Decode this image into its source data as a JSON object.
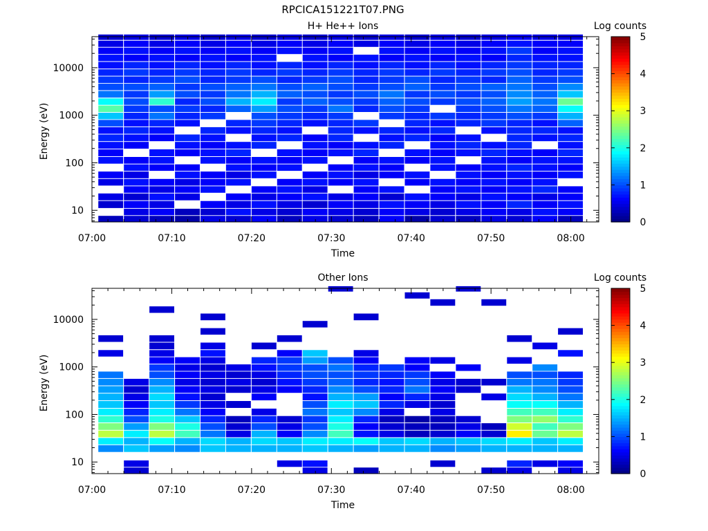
{
  "figure": {
    "title": "RPCICA151221T07.PNG"
  },
  "chart_data": [
    {
      "type": "heatmap",
      "title": "H+ He++ Ions",
      "xlabel": "Time",
      "ylabel": "Energy (eV)",
      "x_ticks": [
        "07:00",
        "07:10",
        "07:20",
        "07:30",
        "07:40",
        "07:50",
        "08:00"
      ],
      "x_range_minutes": [
        0,
        63.5
      ],
      "y_scale": "log",
      "y_ticks": [
        "10",
        "100",
        "1000",
        "10000"
      ],
      "y_range": [
        5.7,
        45000
      ],
      "colorbar": {
        "label": "Log counts",
        "range": [
          0,
          5
        ],
        "ticks": [
          "0",
          "1",
          "2",
          "3",
          "4",
          "5"
        ],
        "colormap": "jet"
      },
      "time_bins_minutes": [
        2.4,
        5.6,
        8.8,
        12.0,
        15.2,
        18.4,
        21.6,
        24.8,
        28.0,
        31.2,
        34.4,
        37.6,
        40.8,
        44.0,
        47.2,
        50.4,
        53.6,
        56.8,
        60.0
      ],
      "time_bin_width_minutes": 3.2,
      "energy_bins_eV": [
        6.5,
        9,
        13,
        19,
        27,
        38,
        55,
        78,
        110,
        160,
        230,
        330,
        470,
        670,
        950,
        1350,
        1900,
        2700,
        3900,
        5500,
        7800,
        11000,
        16000,
        22000,
        32000,
        43000
      ],
      "values_log_counts": [
        [
          0.3,
          0.4,
          0.3,
          0.2,
          0.5,
          0.4,
          0.6,
          0.3,
          0.5,
          0.4,
          0.3,
          0.6,
          0.2,
          0.4,
          0.3,
          0.5,
          0.4,
          0.6,
          0.3
        ],
        [
          0.0,
          0.5,
          0.6,
          0.3,
          0.4,
          0.7,
          0.5,
          0.4,
          0.6,
          0.5,
          0.4,
          0.6,
          0.5,
          0.4,
          0.5,
          0.6,
          0.5,
          0.7,
          0.6
        ],
        [
          0.4,
          0.6,
          0.5,
          0.0,
          0.6,
          0.5,
          0.7,
          0.5,
          0.4,
          0.6,
          0.5,
          0.7,
          0.6,
          0.5,
          0.7,
          0.6,
          0.8,
          0.6,
          0.7
        ],
        [
          0.5,
          0.4,
          0.7,
          0.5,
          0.0,
          0.6,
          0.5,
          0.6,
          0.7,
          0.5,
          0.6,
          0.4,
          0.7,
          0.6,
          0.5,
          0.7,
          0.6,
          0.5,
          0.6
        ],
        [
          0.0,
          0.6,
          0.5,
          0.6,
          0.7,
          0.0,
          0.6,
          0.7,
          0.5,
          0.0,
          0.6,
          0.7,
          0.0,
          0.6,
          0.7,
          0.6,
          0.7,
          0.8,
          0.6
        ],
        [
          0.5,
          0.7,
          0.6,
          0.5,
          0.6,
          0.7,
          0.0,
          0.6,
          0.7,
          0.6,
          0.7,
          0.0,
          0.6,
          0.7,
          0.6,
          0.7,
          0.6,
          0.7,
          0.0
        ],
        [
          0.6,
          0.5,
          0.0,
          0.7,
          0.6,
          0.5,
          0.7,
          0.0,
          0.6,
          0.7,
          0.5,
          0.6,
          0.7,
          0.0,
          0.7,
          0.6,
          0.7,
          0.6,
          0.7
        ],
        [
          0.0,
          0.7,
          0.6,
          0.6,
          0.0,
          0.7,
          0.6,
          0.7,
          0.0,
          0.6,
          0.7,
          0.6,
          0.0,
          0.7,
          0.6,
          0.7,
          0.8,
          0.7,
          0.6
        ],
        [
          0.7,
          0.6,
          0.7,
          0.0,
          0.7,
          0.6,
          0.7,
          0.6,
          0.7,
          0.0,
          0.6,
          0.7,
          0.6,
          0.7,
          0.0,
          0.7,
          0.6,
          0.7,
          0.7
        ],
        [
          0.6,
          0.0,
          0.7,
          0.6,
          0.7,
          0.8,
          0.0,
          0.7,
          0.6,
          0.7,
          0.8,
          0.0,
          0.7,
          0.6,
          0.7,
          0.8,
          0.7,
          0.6,
          0.8
        ],
        [
          0.7,
          0.6,
          0.0,
          0.7,
          0.6,
          0.7,
          0.8,
          0.0,
          0.7,
          0.6,
          0.7,
          0.8,
          0.0,
          0.7,
          0.8,
          0.7,
          0.8,
          0.0,
          0.7
        ],
        [
          0.8,
          0.7,
          0.6,
          0.8,
          0.7,
          0.0,
          0.7,
          0.8,
          0.6,
          0.8,
          0.0,
          0.7,
          0.8,
          0.6,
          0.7,
          0.0,
          0.8,
          0.7,
          0.8
        ],
        [
          0.7,
          0.8,
          0.7,
          0.0,
          0.8,
          0.7,
          0.8,
          0.7,
          0.0,
          0.8,
          0.7,
          0.8,
          0.7,
          0.8,
          0.0,
          0.7,
          0.8,
          0.8,
          0.7
        ],
        [
          1.0,
          0.7,
          0.8,
          0.7,
          0.0,
          0.8,
          0.9,
          0.8,
          0.7,
          0.8,
          0.9,
          0.0,
          0.8,
          0.7,
          0.8,
          0.9,
          0.8,
          0.7,
          1.1
        ],
        [
          1.6,
          0.8,
          1.2,
          0.8,
          0.9,
          0.0,
          1.0,
          0.9,
          0.8,
          0.9,
          0.0,
          0.9,
          0.8,
          0.9,
          0.8,
          0.9,
          1.0,
          0.9,
          1.5
        ],
        [
          2.3,
          0.9,
          1.0,
          0.9,
          0.8,
          1.1,
          1.4,
          1.0,
          0.9,
          1.2,
          0.8,
          1.0,
          0.9,
          0.0,
          0.9,
          1.0,
          1.2,
          1.1,
          1.9
        ],
        [
          1.9,
          1.0,
          2.1,
          0.8,
          1.0,
          1.5,
          1.8,
          0.9,
          1.1,
          1.0,
          0.9,
          1.1,
          1.0,
          0.9,
          1.0,
          1.1,
          1.4,
          1.2,
          2.4
        ],
        [
          1.2,
          0.9,
          1.4,
          1.0,
          0.9,
          1.2,
          1.5,
          1.1,
          1.0,
          0.9,
          1.0,
          1.2,
          0.9,
          1.0,
          0.9,
          1.0,
          1.3,
          1.1,
          1.6
        ],
        [
          1.0,
          1.0,
          1.1,
          0.9,
          1.0,
          1.1,
          1.2,
          1.0,
          1.1,
          1.0,
          0.9,
          1.0,
          1.1,
          0.9,
          1.0,
          1.1,
          1.2,
          1.0,
          1.3
        ],
        [
          0.9,
          0.8,
          0.9,
          1.0,
          0.8,
          0.9,
          1.0,
          0.8,
          0.9,
          1.0,
          0.8,
          0.9,
          1.0,
          0.8,
          0.9,
          0.8,
          1.1,
          0.9,
          1.0
        ],
        [
          0.8,
          0.9,
          0.8,
          0.9,
          0.8,
          0.9,
          0.8,
          0.9,
          0.8,
          0.9,
          0.8,
          0.9,
          0.8,
          0.9,
          0.8,
          0.9,
          1.0,
          0.8,
          0.9
        ],
        [
          0.7,
          0.8,
          0.7,
          0.8,
          0.7,
          0.8,
          0.7,
          0.8,
          0.7,
          0.8,
          0.7,
          0.8,
          0.7,
          0.8,
          0.7,
          0.8,
          0.9,
          0.8,
          0.8
        ],
        [
          0.7,
          0.6,
          0.7,
          0.6,
          0.7,
          0.6,
          0.7,
          0.0,
          0.7,
          0.6,
          0.7,
          0.6,
          0.7,
          0.6,
          0.7,
          0.6,
          0.8,
          0.7,
          0.7
        ],
        [
          0.6,
          0.7,
          0.6,
          0.7,
          0.6,
          0.7,
          0.6,
          0.7,
          0.6,
          0.7,
          0.0,
          0.7,
          0.6,
          0.7,
          0.6,
          0.7,
          0.9,
          0.6,
          0.7
        ],
        [
          0.5,
          0.6,
          0.5,
          0.6,
          0.5,
          0.6,
          0.5,
          0.6,
          0.5,
          0.6,
          0.5,
          0.6,
          0.5,
          0.6,
          0.5,
          0.6,
          0.7,
          0.6,
          0.6
        ],
        [
          0.4,
          0.5,
          0.4,
          0.5,
          0.4,
          0.5,
          0.4,
          0.5,
          0.4,
          0.5,
          0.4,
          0.5,
          0.4,
          0.5,
          0.4,
          0.5,
          0.6,
          0.5,
          0.5
        ]
      ]
    },
    {
      "type": "heatmap",
      "title": "Other Ions",
      "xlabel": "Time",
      "ylabel": "Energy (eV)",
      "x_ticks": [
        "07:00",
        "07:10",
        "07:20",
        "07:30",
        "07:40",
        "07:50",
        "08:00"
      ],
      "x_range_minutes": [
        0,
        63.5
      ],
      "y_scale": "log",
      "y_ticks": [
        "10",
        "100",
        "1000",
        "10000"
      ],
      "y_range": [
        5.7,
        45000
      ],
      "colorbar": {
        "label": "Log counts",
        "range": [
          0,
          5
        ],
        "ticks": [
          "0",
          "1",
          "2",
          "3",
          "4",
          "5"
        ],
        "colormap": "jet"
      },
      "time_bins_minutes": [
        2.4,
        5.6,
        8.8,
        12.0,
        15.2,
        18.4,
        21.6,
        24.8,
        28.0,
        31.2,
        34.4,
        37.6,
        40.8,
        44.0,
        47.2,
        50.4,
        53.6,
        56.8,
        60.0
      ],
      "time_bin_width_minutes": 3.2,
      "energy_bins_eV": [
        6.5,
        9,
        13,
        19,
        27,
        38,
        55,
        78,
        110,
        160,
        230,
        330,
        470,
        670,
        950,
        1350,
        1900,
        2700,
        3900,
        5500,
        7800,
        11000,
        16000,
        22000,
        32000,
        43000
      ],
      "values_log_counts": [
        [
          0.0,
          0.4,
          0.0,
          0.0,
          0.0,
          0.0,
          0.0,
          0.0,
          0.5,
          0.0,
          0.3,
          0.0,
          0.0,
          0.0,
          0.0,
          0.4,
          0.5,
          0.0,
          0.5
        ],
        [
          0.0,
          0.5,
          0.0,
          0.0,
          0.0,
          0.0,
          0.0,
          0.5,
          0.7,
          0.0,
          0.0,
          0.0,
          0.0,
          0.4,
          0.0,
          0.0,
          0.8,
          0.5,
          0.6
        ],
        [
          0.0,
          0.0,
          0.0,
          0.0,
          0.0,
          0.0,
          0.0,
          0.0,
          0.0,
          0.0,
          0.0,
          0.0,
          0.0,
          0.0,
          0.0,
          0.0,
          0.0,
          0.0,
          0.0
        ],
        [
          1.3,
          1.6,
          1.4,
          1.3,
          1.6,
          1.5,
          1.5,
          1.5,
          1.6,
          1.5,
          1.4,
          1.5,
          1.5,
          1.3,
          1.4,
          1.5,
          1.5,
          1.5,
          1.5
        ],
        [
          1.8,
          1.5,
          1.9,
          1.5,
          1.7,
          1.5,
          1.7,
          1.6,
          1.8,
          1.8,
          1.9,
          1.6,
          1.7,
          1.5,
          1.6,
          1.7,
          1.8,
          1.6,
          1.8
        ],
        [
          2.8,
          1.8,
          2.8,
          2.2,
          1.2,
          0.5,
          1.5,
          0.6,
          1.3,
          2.2,
          0.7,
          0.5,
          0.3,
          0.4,
          0.6,
          0.4,
          3.2,
          2.4,
          2.8
        ],
        [
          2.5,
          1.4,
          2.5,
          2.0,
          1.0,
          0.4,
          1.0,
          0.5,
          1.0,
          2.0,
          0.6,
          0.4,
          0.3,
          0.3,
          0.5,
          0.3,
          2.9,
          2.2,
          2.5
        ],
        [
          2.1,
          1.0,
          2.0,
          1.6,
          0.8,
          0.3,
          0.8,
          0.4,
          0.9,
          1.8,
          0.8,
          0.3,
          0.2,
          0.3,
          0.4,
          0.0,
          2.5,
          2.6,
          2.1
        ],
        [
          1.8,
          0.8,
          1.8,
          1.2,
          0.6,
          0.0,
          0.5,
          0.0,
          1.2,
          1.6,
          1.3,
          0.5,
          0.0,
          0.5,
          0.0,
          0.0,
          2.2,
          2.2,
          1.8
        ],
        [
          1.6,
          0.6,
          1.6,
          0.9,
          0.5,
          0.4,
          0.0,
          0.0,
          1.0,
          1.8,
          1.6,
          0.8,
          0.5,
          0.4,
          0.0,
          0.0,
          1.9,
          1.9,
          1.5
        ],
        [
          1.5,
          0.5,
          1.7,
          0.7,
          0.4,
          0.0,
          0.6,
          0.0,
          0.7,
          1.5,
          1.4,
          0.6,
          0.8,
          0.5,
          0.0,
          0.5,
          1.7,
          1.5,
          1.2
        ],
        [
          1.4,
          0.4,
          1.5,
          0.6,
          0.5,
          0.4,
          0.5,
          0.6,
          0.8,
          1.3,
          1.0,
          0.8,
          1.2,
          0.6,
          0.4,
          0.0,
          1.5,
          1.3,
          1.0
        ],
        [
          1.3,
          0.5,
          1.3,
          0.5,
          0.4,
          0.5,
          0.4,
          0.7,
          0.9,
          1.1,
          0.8,
          0.7,
          1.0,
          0.5,
          0.4,
          0.4,
          1.2,
          1.2,
          0.9
        ],
        [
          1.2,
          0.0,
          1.0,
          0.6,
          0.5,
          0.4,
          0.5,
          0.8,
          1.0,
          1.0,
          0.9,
          0.8,
          0.9,
          0.6,
          0.0,
          0.0,
          1.0,
          1.0,
          0.8
        ],
        [
          0.0,
          0.0,
          0.9,
          0.5,
          0.4,
          0.5,
          0.7,
          0.9,
          1.0,
          1.2,
          0.8,
          0.9,
          0.6,
          0.0,
          0.6,
          0.0,
          0.0,
          1.3,
          0.0
        ],
        [
          0.0,
          0.0,
          0.6,
          0.6,
          0.5,
          0.0,
          0.8,
          0.9,
          1.4,
          1.0,
          0.6,
          0.0,
          0.6,
          0.5,
          0.0,
          0.0,
          0.5,
          0.0,
          0.0
        ],
        [
          0.5,
          0.0,
          0.5,
          0.0,
          0.7,
          0.0,
          0.0,
          0.6,
          1.6,
          0.0,
          0.5,
          0.0,
          0.0,
          0.0,
          0.0,
          0.0,
          0.0,
          0.0,
          0.7
        ],
        [
          0.0,
          0.0,
          0.4,
          0.0,
          0.5,
          0.0,
          0.4,
          0.0,
          0.0,
          0.0,
          0.0,
          0.0,
          0.0,
          0.0,
          0.0,
          0.0,
          0.0,
          0.5,
          0.0
        ],
        [
          0.4,
          0.0,
          0.4,
          0.0,
          0.0,
          0.0,
          0.0,
          0.4,
          0.0,
          0.0,
          0.0,
          0.0,
          0.0,
          0.0,
          0.0,
          0.0,
          0.4,
          0.0,
          0.0
        ],
        [
          0.0,
          0.0,
          0.0,
          0.0,
          0.4,
          0.0,
          0.0,
          0.0,
          0.0,
          0.0,
          0.0,
          0.0,
          0.0,
          0.0,
          0.0,
          0.0,
          0.0,
          0.0,
          0.4
        ],
        [
          0.0,
          0.0,
          0.0,
          0.0,
          0.0,
          0.0,
          0.0,
          0.0,
          0.4,
          0.0,
          0.0,
          0.0,
          0.0,
          0.0,
          0.0,
          0.0,
          0.0,
          0.0,
          0.0
        ],
        [
          0.0,
          0.0,
          0.0,
          0.0,
          0.4,
          0.0,
          0.0,
          0.0,
          0.0,
          0.0,
          0.4,
          0.0,
          0.0,
          0.0,
          0.0,
          0.0,
          0.0,
          0.0,
          0.0
        ],
        [
          0.0,
          0.0,
          0.4,
          0.0,
          0.0,
          0.0,
          0.0,
          0.0,
          0.0,
          0.0,
          0.0,
          0.0,
          0.0,
          0.0,
          0.0,
          0.0,
          0.0,
          0.0,
          0.0
        ],
        [
          0.0,
          0.0,
          0.0,
          0.0,
          0.0,
          0.0,
          0.0,
          0.0,
          0.0,
          0.0,
          0.0,
          0.0,
          0.0,
          0.4,
          0.0,
          0.4,
          0.0,
          0.0,
          0.0
        ],
        [
          0.0,
          0.0,
          0.0,
          0.0,
          0.0,
          0.0,
          0.0,
          0.0,
          0.0,
          0.0,
          0.0,
          0.0,
          0.4,
          0.0,
          0.0,
          0.0,
          0.0,
          0.0,
          0.0
        ],
        [
          0.0,
          0.0,
          0.0,
          0.0,
          0.0,
          0.0,
          0.0,
          0.0,
          0.0,
          0.4,
          0.0,
          0.0,
          0.0,
          0.0,
          0.4,
          0.0,
          0.0,
          0.0,
          0.0
        ]
      ]
    }
  ]
}
